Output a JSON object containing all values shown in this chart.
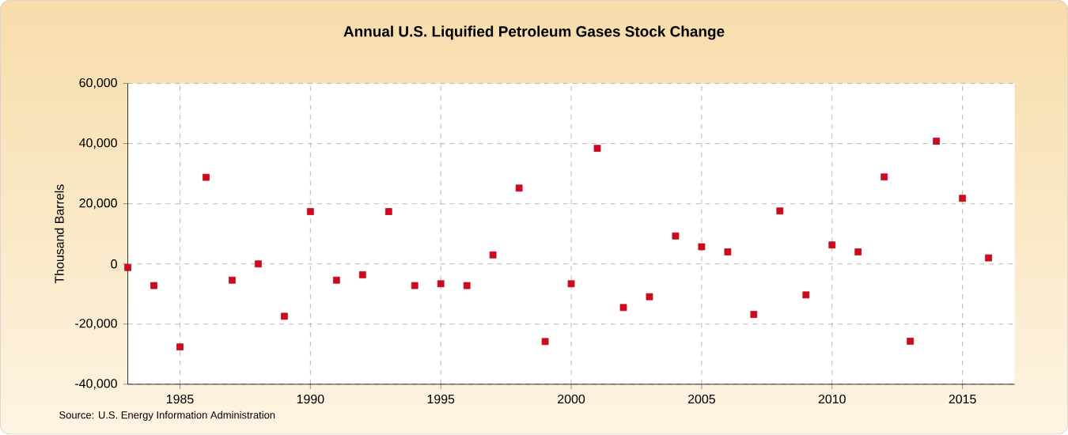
{
  "chart_data": {
    "type": "scatter",
    "title": "Annual U.S. Liquified Petroleum Gases Stock Change",
    "ylabel": "Thousand Barrels",
    "x": [
      1983,
      1984,
      1985,
      1986,
      1987,
      1988,
      1989,
      1990,
      1991,
      1992,
      1993,
      1994,
      1995,
      1996,
      1997,
      1998,
      1999,
      2000,
      2001,
      2002,
      2003,
      2004,
      2005,
      2006,
      2007,
      2008,
      2009,
      2010,
      2011,
      2012,
      2013,
      2014,
      2015,
      2016
    ],
    "values": [
      -1200,
      -7200,
      -27600,
      28800,
      -5400,
      0,
      -17400,
      17400,
      -5400,
      -3600,
      17400,
      -7200,
      -6600,
      -7200,
      3000,
      25200,
      -25800,
      -6600,
      38400,
      -14500,
      -10900,
      9300,
      5700,
      4000,
      -16800,
      17600,
      -10300,
      6300,
      4000,
      28900,
      -25700,
      40800,
      21800,
      2000
    ],
    "color": "#cc0a1e",
    "marker": "square",
    "grid": true,
    "xlim": [
      1983,
      2017
    ],
    "ylim": [
      -40000,
      60000
    ],
    "xticks": [
      1985,
      1990,
      1995,
      2000,
      2005,
      2010,
      2015
    ],
    "yticks": [
      {
        "value": -40000,
        "label": "-40,000"
      },
      {
        "value": -20000,
        "label": "-20,000"
      },
      0,
      {
        "value": 20000,
        "label": "20,000"
      },
      {
        "value": 40000,
        "label": "40,000"
      },
      {
        "value": 60000,
        "label": "60,000"
      }
    ],
    "annotations": [
      "Source: U.S. Energy Information Administration"
    ]
  }
}
